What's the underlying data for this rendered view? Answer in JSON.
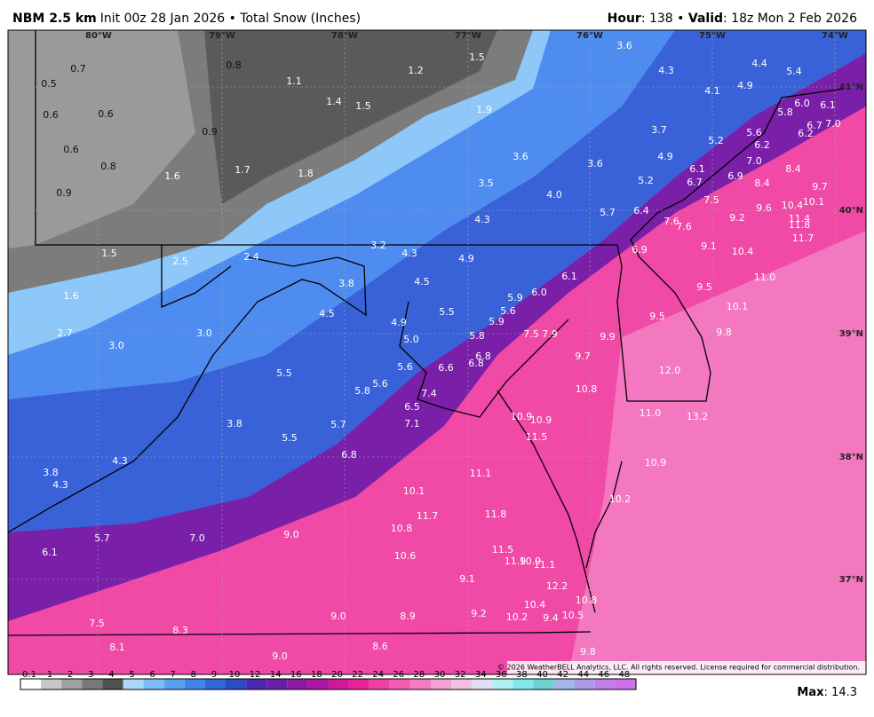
{
  "header": {
    "model": "NBM 2.5 km",
    "subtitle": "Init 00z 28 Jan 2026 • Total Snow (Inches)",
    "hour_label": "Hour",
    "hour_text": ": 138 • ",
    "valid_label": "Valid",
    "valid_text": ": 18z Mon 2 Feb 2026"
  },
  "longitudes": [
    "80°W",
    "79°W",
    "78°W",
    "77°W",
    "76°W",
    "75°W",
    "74°W"
  ],
  "latitudes": [
    "41°N",
    "40°N",
    "39°N",
    "38°N",
    "37°N"
  ],
  "map_labels_dark": [
    "0.7",
    "0.8",
    "0.5",
    "0.6",
    "0.6",
    "0.9",
    "0.6",
    "0.8",
    "0.9"
  ],
  "map_labels_light": [
    "1.2",
    "1.5",
    "3.6",
    "4.4",
    "5.4",
    "1.1",
    "4.3",
    "4.1",
    "4.9",
    "1.4",
    "1.5",
    "1.9",
    "6.0",
    "6.1",
    "5.8",
    "3.7",
    "5.6",
    "6.7",
    "7.0",
    "6.2",
    "5.2",
    "6.2",
    "3.6",
    "3.6",
    "4.9",
    "7.0",
    "8.4",
    "1.7",
    "1.8",
    "6.1",
    "6.9",
    "1.6",
    "3.5",
    "5.2",
    "6.7",
    "8.4",
    "9.7",
    "4.0",
    "7.5",
    "10.4",
    "10.1",
    "9.6",
    "5.7",
    "6.4",
    "9.2",
    "11.4",
    "4.3",
    "7.6",
    "7.6",
    "11.8",
    "11.7",
    "3.2",
    "9.1",
    "6.9",
    "10.4",
    "4.3",
    "4.9",
    "1.5",
    "2.4",
    "2.5",
    "6.1",
    "11.0",
    "6.0",
    "5.9",
    "4.5",
    "3.8",
    "9.5",
    "1.6",
    "10.1",
    "5.6",
    "5.5",
    "4.5",
    "9.5",
    "5.9",
    "4.9",
    "9.8",
    "7.5",
    "7.9",
    "5.8",
    "9.9",
    "2.7",
    "3.0",
    "3.0",
    "5.0",
    "6.8",
    "9.7",
    "5.6",
    "6.6",
    "6.8",
    "12.0",
    "5.5",
    "5.8",
    "5.6",
    "7.4",
    "10.8",
    "6.5",
    "11.0",
    "10.9",
    "10.9",
    "7.1",
    "3.8",
    "5.7",
    "13.2",
    "11.5",
    "5.5",
    "6.8",
    "4.3",
    "10.9",
    "3.8",
    "4.3",
    "11.1",
    "10.1",
    "10.2",
    "11.7",
    "11.8",
    "10.8",
    "9.0",
    "7.0",
    "5.7",
    "11.5",
    "10.6",
    "6.1",
    "11.9",
    "10.9",
    "11.1",
    "9.1",
    "12.2",
    "10.8",
    "10.4",
    "9.0",
    "8.9",
    "9.2",
    "10.2",
    "9.4",
    "10.5",
    "7.5",
    "8.3",
    "8.1",
    "8.6",
    "9.8",
    "9.0"
  ],
  "copyright": "© 2026 WeatherBELL Analytics, LLC. All rights reserved. License required for commercial distribution.",
  "legend": {
    "ticks": [
      "0.1",
      "1",
      "2",
      "3",
      "4",
      "5",
      "6",
      "7",
      "8",
      "9",
      "10",
      "12",
      "14",
      "16",
      "18",
      "20",
      "22",
      "24",
      "26",
      "28",
      "30",
      "32",
      "34",
      "36",
      "38",
      "40",
      "42",
      "44",
      "46",
      "48"
    ],
    "colors": [
      "#ffffff",
      "#c8c8c8",
      "#a0a0a0",
      "#787878",
      "#505050",
      "#a8d8fa",
      "#7cbcf6",
      "#5aa0f0",
      "#3f84e8",
      "#2f66d8",
      "#2a4cc4",
      "#4a28b0",
      "#6a1fa8",
      "#8a1aa4",
      "#a818a0",
      "#d0189a",
      "#e8209a",
      "#f040a4",
      "#f45cb0",
      "#f47cc0",
      "#f4a0d0",
      "#f0c0e0",
      "#e0e0f4",
      "#b0f0f0",
      "#80e8e8",
      "#70d0d0",
      "#a0b8e8",
      "#b098e8",
      "#c080ea",
      "#d070ec"
    ],
    "max_label": "Max",
    "max_value": ": 14.3"
  }
}
